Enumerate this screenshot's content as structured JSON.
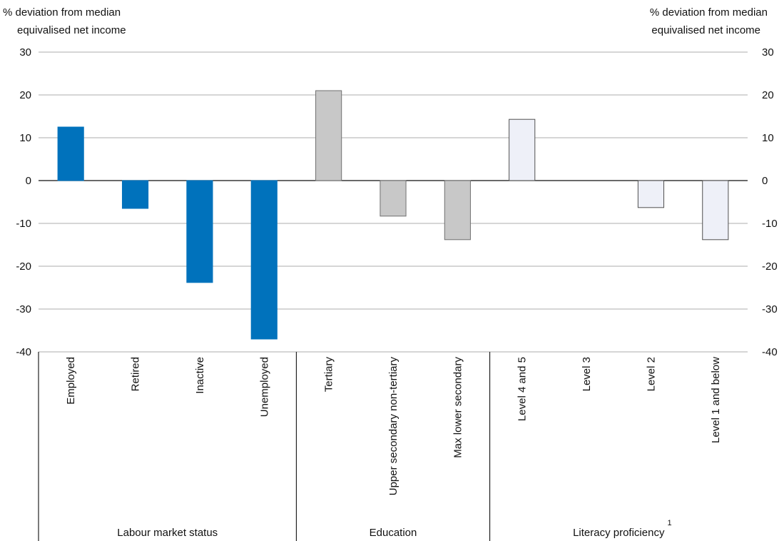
{
  "chart_data": {
    "type": "bar",
    "ylabel": [
      "% deviation from median",
      "equivalised net income"
    ],
    "y2label": [
      "% deviation from median",
      "equivalised net income"
    ],
    "ylim": [
      -40,
      30
    ],
    "yticks": [
      -40,
      -30,
      -20,
      -10,
      0,
      10,
      20,
      30
    ],
    "y2lim": [
      -40,
      30
    ],
    "y2ticks": [
      -40,
      -30,
      -20,
      -10,
      0,
      10,
      20,
      30
    ],
    "grid": true,
    "groups": [
      {
        "label": "Labour market status",
        "color": "#0072bc",
        "edgecolor": "#0072bc",
        "categories": [
          "Employed",
          "Retired",
          "Inactive",
          "Unemployed"
        ],
        "values": [
          12.5,
          -6.5,
          -23.8,
          -37
        ]
      },
      {
        "label": "Education",
        "color": "#c8c8c8",
        "edgecolor": "#707070",
        "categories": [
          "Tertiary",
          "Upper secondary non-tertiary",
          "Max lower secondary"
        ],
        "values": [
          21,
          -8.3,
          -13.8
        ]
      },
      {
        "label": "Literacy proficiency",
        "note": "1",
        "color": "#eef0f8",
        "edgecolor": "#505050",
        "categories": [
          "Level 4 and 5",
          "Level 3",
          "Level 2",
          "Level 1 and below"
        ],
        "values": [
          14.3,
          null,
          -6.3,
          -13.8
        ]
      }
    ]
  }
}
